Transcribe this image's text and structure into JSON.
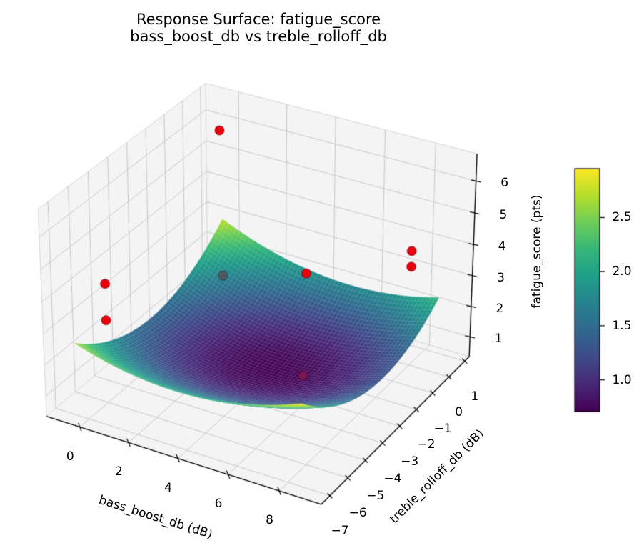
{
  "title": {
    "line1": "Response Surface: fatigue_score",
    "line2": "bass_boost_db vs treble_rolloff_db"
  },
  "chart_data": {
    "type": "surface3d_with_scatter",
    "axes": {
      "x": {
        "label": "bass_boost_db (dB)",
        "ticks": [
          0,
          2,
          4,
          6,
          8
        ],
        "range": [
          -1.39,
          9.62
        ]
      },
      "y": {
        "label": "treble_rolloff_db (dB)",
        "ticks": [
          1,
          0,
          -1,
          -2,
          -3,
          -4,
          -5,
          -6,
          -7
        ],
        "range": [
          -7.48,
          1.29
        ]
      },
      "z": {
        "label": "fatigue_score (pts)",
        "ticks": [
          1,
          2,
          3,
          4,
          5,
          6
        ],
        "range": [
          0.35,
          6.85
        ]
      }
    },
    "surface": {
      "model": "z = c + a*(x-x0)^2 + b*(y-y0)^2 + d*(x-x0)*(y-y0)",
      "coeffs": {
        "c": 0.71,
        "a": 0.033,
        "b": 0.078,
        "d": -0.012,
        "x0": 4.3,
        "y0": -2.7
      },
      "x_domain": [
        -0.5,
        8.5
      ],
      "y_domain": [
        -7,
        1
      ],
      "sample_x": [
        0,
        2,
        4,
        6,
        8
      ],
      "sample_y": [
        -7,
        -5,
        -3,
        -1,
        1
      ],
      "sample_z": [
        [
          2.54,
          1.61,
          1.31,
          1.63,
          2.58
        ],
        [
          2.21,
          1.23,
          0.88,
          1.16,
          2.06
        ],
        [
          2.14,
          1.12,
          0.72,
          0.94,
          1.79
        ],
        [
          2.33,
          1.27,
          0.82,
          1.0,
          1.8
        ],
        [
          2.8,
          1.68,
          1.18,
          1.31,
          2.07
        ]
      ],
      "colormap": "viridis",
      "grid_n": 60
    },
    "scatter": [
      {
        "x": 0,
        "y": 0.2,
        "z": 6.1,
        "color": "#e8000d"
      },
      {
        "x": 8,
        "y": 0,
        "z": 4.05,
        "color": "#e8000d"
      },
      {
        "x": 8,
        "y": 0,
        "z": 3.55,
        "color": "#e8000d"
      },
      {
        "x": 5.5,
        "y": -2.5,
        "z": 4.0,
        "color": "#e8000d"
      },
      {
        "x": 0,
        "y": -6,
        "z": 4.15,
        "color": "#e8000d"
      },
      {
        "x": 0,
        "y": -6,
        "z": 3.0,
        "color": "#e8000d"
      },
      {
        "x": 2.5,
        "y": -3,
        "z": 3.5,
        "color": "#4e585e"
      },
      {
        "x": 5.2,
        "y": -2.2,
        "z": 0.48,
        "color": "#7c1550"
      }
    ],
    "colorbar": {
      "vmin": 0.707,
      "vmax": 2.952,
      "tick_values": [
        1.0,
        1.5,
        2.0,
        2.5
      ],
      "tick_labels": [
        "1.0",
        "1.5",
        "2.0",
        "2.5"
      ]
    },
    "colormap_stops": [
      [
        68,
        1,
        84
      ],
      [
        72,
        40,
        120
      ],
      [
        62,
        74,
        137
      ],
      [
        49,
        104,
        142
      ],
      [
        38,
        130,
        142
      ],
      [
        31,
        158,
        137
      ],
      [
        53,
        183,
        121
      ],
      [
        109,
        205,
        89
      ],
      [
        180,
        222,
        44
      ],
      [
        253,
        231,
        37
      ]
    ],
    "style_colors": {
      "pane": "#f4f4f4",
      "grid": "#c9c9c9",
      "pane_edge": "#d4d4d4",
      "spine": "#000000",
      "marker_red": "#e8000d"
    }
  }
}
